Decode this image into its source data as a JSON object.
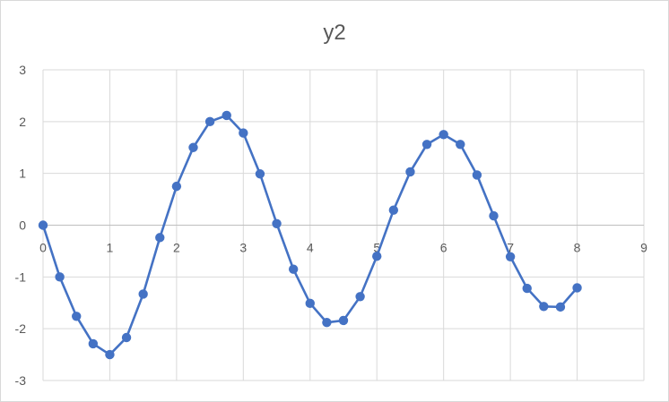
{
  "chart_data": {
    "type": "scatter",
    "title": "y2",
    "xlabel": "",
    "ylabel": "",
    "xlim": [
      0,
      9
    ],
    "ylim": [
      -3,
      3
    ],
    "x_ticks": [
      "0",
      "1",
      "2",
      "3",
      "4",
      "5",
      "6",
      "7",
      "8",
      "9"
    ],
    "y_ticks": [
      "3",
      "2",
      "1",
      "0",
      "-1",
      "-2",
      "-3"
    ],
    "grid": true,
    "legend": "none",
    "series_color": "#4472C4",
    "series": [
      {
        "x": [
          0,
          0.25,
          0.5,
          0.75,
          1,
          1.25,
          1.5,
          1.75,
          2,
          2.25,
          2.5,
          2.75,
          3,
          3.25,
          3.5,
          3.75,
          4,
          4.25,
          4.5,
          4.75,
          5,
          5.25,
          5.5,
          5.75,
          6,
          6.25,
          6.5,
          6.75,
          7,
          7.25,
          7.5,
          7.75,
          8
        ],
        "y": [
          0,
          -1.0,
          -1.76,
          -2.29,
          -2.5,
          -2.17,
          -1.33,
          -0.24,
          0.75,
          1.5,
          2.0,
          2.12,
          1.78,
          0.99,
          0.03,
          -0.85,
          -1.51,
          -1.88,
          -1.84,
          -1.38,
          -0.6,
          0.29,
          1.03,
          1.56,
          1.75,
          1.56,
          0.97,
          0.18,
          -0.61,
          -1.22,
          -1.57,
          -1.58,
          -1.21
        ]
      }
    ]
  }
}
